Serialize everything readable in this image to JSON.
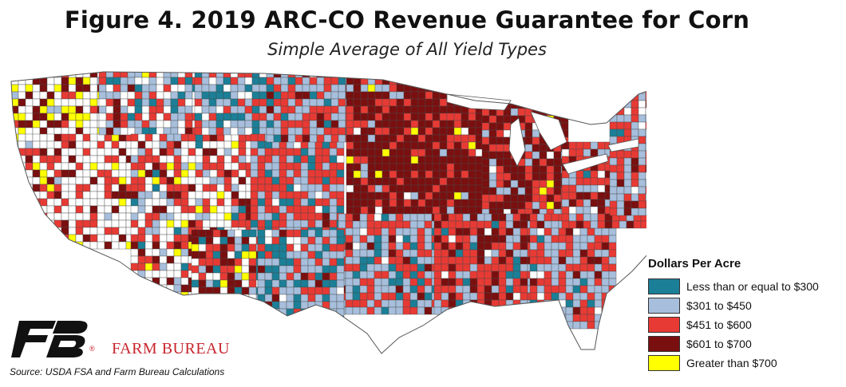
{
  "title": "Figure 4. 2019 ARC-CO Revenue Guarantee for Corn",
  "subtitle": "Simple Average of All Yield Types",
  "legend": {
    "title": "Dollars Per Acre",
    "items": [
      {
        "label": "Less than or equal to $300",
        "color": "#1b7f97"
      },
      {
        "label": "$301 to $450",
        "color": "#a7bfdc"
      },
      {
        "label": "$451 to $600",
        "color": "#e83a34"
      },
      {
        "label": "$601 to $700",
        "color": "#7a0f0f"
      },
      {
        "label": "Greater than $700",
        "color": "#ffff00"
      }
    ]
  },
  "logo": {
    "name": "FARM BUREAU",
    "reg": "®"
  },
  "source": "Source: USDA FSA and Farm Bureau Calculations"
}
